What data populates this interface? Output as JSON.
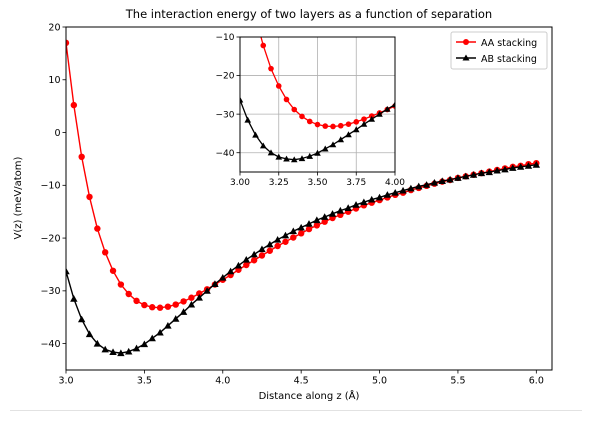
{
  "chart_data": {
    "type": "line",
    "title": "The interaction energy of two layers as a function of separation",
    "xlabel": "Distance along z (Å)",
    "ylabel": "V(z) (meV/atom)",
    "xlim": [
      3.0,
      6.1
    ],
    "ylim": [
      -45,
      20
    ],
    "xticks": [
      "3.0",
      "3.5",
      "4.0",
      "4.5",
      "5.0",
      "5.5",
      "6.0"
    ],
    "yticks": [
      "20",
      "10",
      "0",
      "−10",
      "−20",
      "−30",
      "−40"
    ],
    "grid": false,
    "legend_position": "top-right",
    "series": [
      {
        "name": "AA stacking",
        "color": "#ff0000",
        "marker": "circle",
        "x": [
          3.0,
          3.05,
          3.1,
          3.15,
          3.2,
          3.25,
          3.3,
          3.35,
          3.4,
          3.45,
          3.5,
          3.55,
          3.6,
          3.65,
          3.7,
          3.75,
          3.8,
          3.85,
          3.9,
          3.95,
          4.0,
          4.05,
          4.1,
          4.15,
          4.2,
          4.25,
          4.3,
          4.35,
          4.4,
          4.45,
          4.5,
          4.55,
          4.6,
          4.65,
          4.7,
          4.75,
          4.8,
          4.85,
          4.9,
          4.95,
          5.0,
          5.05,
          5.1,
          5.15,
          5.2,
          5.25,
          5.3,
          5.35,
          5.4,
          5.45,
          5.5,
          5.55,
          5.6,
          5.65,
          5.7,
          5.75,
          5.8,
          5.85,
          5.9,
          5.95,
          6.0
        ],
        "values": [
          17,
          5.2,
          -4.6,
          -12.2,
          -18.2,
          -22.7,
          -26.2,
          -28.8,
          -30.6,
          -31.9,
          -32.7,
          -33.1,
          -33.2,
          -33.0,
          -32.6,
          -32.0,
          -31.3,
          -30.5,
          -29.7,
          -28.8,
          -27.9,
          -27.0,
          -26.0,
          -25.1,
          -24.2,
          -23.3,
          -22.4,
          -21.5,
          -20.7,
          -19.9,
          -19.1,
          -18.3,
          -17.6,
          -16.9,
          -16.2,
          -15.6,
          -15.0,
          -14.4,
          -13.8,
          -13.3,
          -12.8,
          -12.3,
          -11.8,
          -11.4,
          -10.9,
          -10.5,
          -10.1,
          -9.7,
          -9.3,
          -9.0,
          -8.6,
          -8.3,
          -8.0,
          -7.7,
          -7.4,
          -7.1,
          -6.8,
          -6.5,
          -6.3,
          -6.0,
          -5.8
        ]
      },
      {
        "name": "AB stacking",
        "color": "#000000",
        "marker": "triangle",
        "x": [
          3.0,
          3.05,
          3.1,
          3.15,
          3.2,
          3.25,
          3.3,
          3.35,
          3.4,
          3.45,
          3.5,
          3.55,
          3.6,
          3.65,
          3.7,
          3.75,
          3.8,
          3.85,
          3.9,
          3.95,
          4.0,
          4.05,
          4.1,
          4.15,
          4.2,
          4.25,
          4.3,
          4.35,
          4.4,
          4.45,
          4.5,
          4.55,
          4.6,
          4.65,
          4.7,
          4.75,
          4.8,
          4.85,
          4.9,
          4.95,
          5.0,
          5.05,
          5.1,
          5.15,
          5.2,
          5.25,
          5.3,
          5.35,
          5.4,
          5.45,
          5.5,
          5.55,
          5.6,
          5.65,
          5.7,
          5.75,
          5.8,
          5.85,
          5.9,
          5.95,
          6.0
        ],
        "values": [
          -26.3,
          -31.5,
          -35.4,
          -38.2,
          -40.0,
          -41.1,
          -41.6,
          -41.8,
          -41.5,
          -40.9,
          -40.1,
          -39.0,
          -37.9,
          -36.6,
          -35.3,
          -34.0,
          -32.6,
          -31.3,
          -30.0,
          -28.7,
          -27.5,
          -26.3,
          -25.2,
          -24.1,
          -23.1,
          -22.1,
          -21.2,
          -20.3,
          -19.5,
          -18.7,
          -18.0,
          -17.3,
          -16.6,
          -16.0,
          -15.4,
          -14.8,
          -14.3,
          -13.7,
          -13.2,
          -12.7,
          -12.3,
          -11.8,
          -11.4,
          -11.0,
          -10.6,
          -10.2,
          -9.9,
          -9.5,
          -9.2,
          -8.9,
          -8.6,
          -8.3,
          -8.0,
          -7.7,
          -7.5,
          -7.2,
          -7.0,
          -6.7,
          -6.5,
          -6.3,
          -6.1
        ]
      }
    ],
    "inset": {
      "xlim": [
        3.0,
        4.0
      ],
      "ylim": [
        -45,
        -10
      ],
      "xticks": [
        "3.00",
        "3.25",
        "3.50",
        "3.75",
        "4.00"
      ],
      "yticks": [
        "−10",
        "−20",
        "−30",
        "−40"
      ],
      "grid": true
    }
  }
}
